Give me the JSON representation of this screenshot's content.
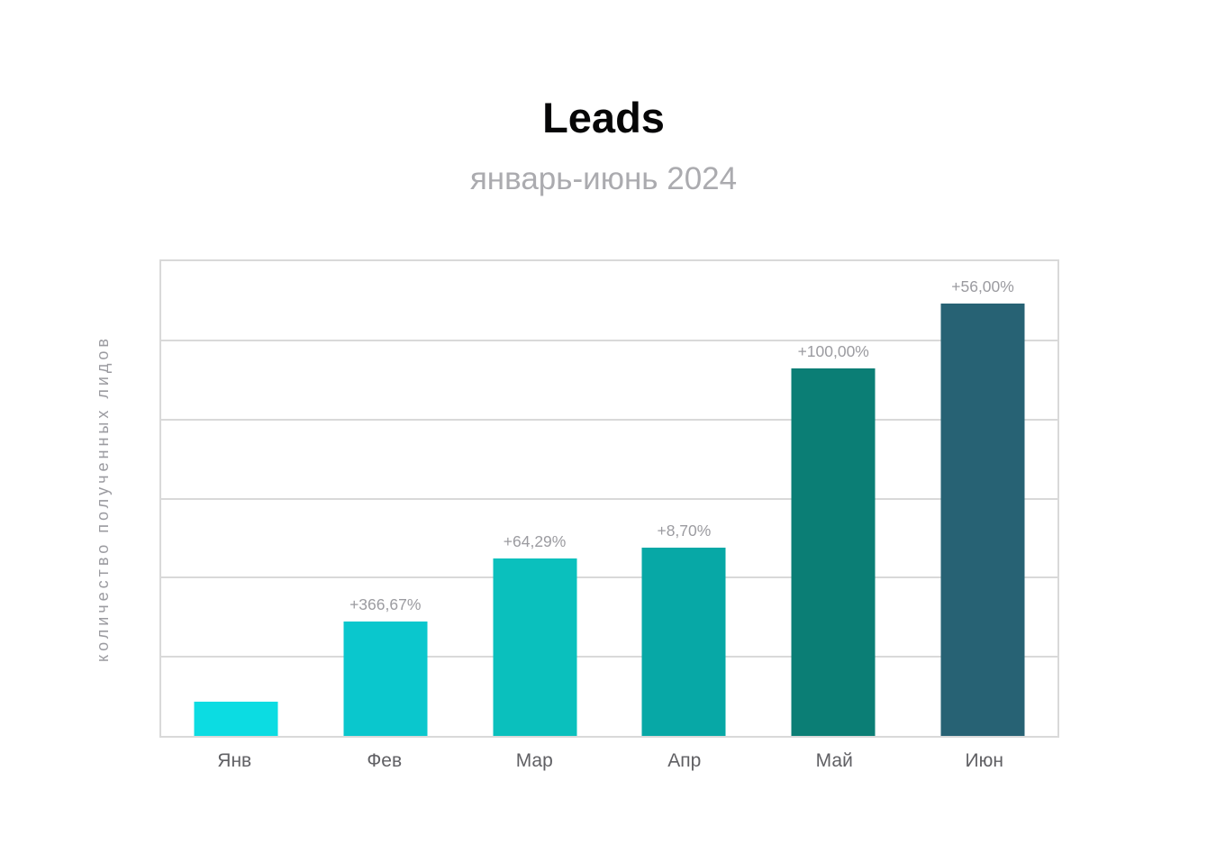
{
  "header": {
    "title": "Leads",
    "subtitle": "январь-июнь 2024"
  },
  "chart_data": {
    "type": "bar",
    "title": "Leads",
    "subtitle": "январь-июнь 2024",
    "xlabel": "",
    "ylabel": "количество полученных лидов",
    "categories": [
      "Янв",
      "Фев",
      "Мар",
      "Апр",
      "Май",
      "Июн"
    ],
    "series": [
      {
        "name": "Leads",
        "growth_labels": [
          "",
          "+366,67%",
          "+64,29%",
          "+8,70%",
          "+100,00%",
          "+56,00%"
        ],
        "bar_height_pct_of_plot": [
          7.2,
          24.1,
          37.3,
          39.7,
          77.4,
          91.0
        ],
        "bar_colors": [
          "#0cdce2",
          "#0ac7cd",
          "#0ac0bd",
          "#07a8a6",
          "#0b7e75",
          "#276274"
        ]
      }
    ],
    "y_axis": {
      "tick_labels_visible": false,
      "gridline_intervals": 6
    },
    "grid": true,
    "legend": false,
    "style": {
      "grid_color": "#d9d9d9",
      "plot_border_color": "#d9d9d9",
      "data_label_color": "#9b9ba0",
      "category_label_color": "#606064",
      "title_color": "#060607",
      "subtitle_color": "#ababaf",
      "background": "#ffffff"
    }
  }
}
